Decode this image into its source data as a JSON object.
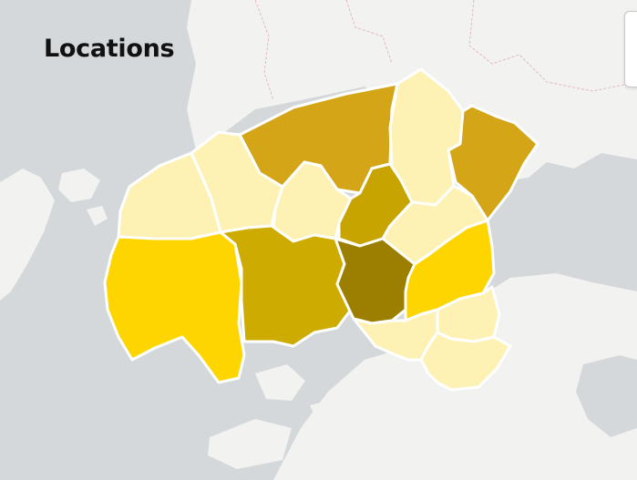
{
  "map": {
    "title": "Locations",
    "colors": {
      "water": "#d5d8db",
      "land": "#f2f2f0",
      "region_border": "#ffffff",
      "scale": [
        "#fdf2b4",
        "#fee99a",
        "#ffd500",
        "#cdab00",
        "#d4a617",
        "#c8a400",
        "#9c7e00"
      ]
    },
    "regions": [
      {
        "id": "north-central",
        "shade": "#d4a617"
      },
      {
        "id": "northeast-strip",
        "shade": "#fdf2b4"
      },
      {
        "id": "east",
        "shade": "#d4a617"
      },
      {
        "id": "northwest",
        "shade": "#fdf2b4"
      },
      {
        "id": "west-upper",
        "shade": "#fdf2b4"
      },
      {
        "id": "center-north",
        "shade": "#fdf2b4"
      },
      {
        "id": "center-upper",
        "shade": "#c8a400"
      },
      {
        "id": "center-right",
        "shade": "#fdf2b4"
      },
      {
        "id": "southwest",
        "shade": "#ffd500"
      },
      {
        "id": "south-central",
        "shade": "#cdab00"
      },
      {
        "id": "center",
        "shade": "#9c7e00"
      },
      {
        "id": "southeast",
        "shade": "#ffd500"
      },
      {
        "id": "south-east-lower",
        "shade": "#fdf2b4"
      },
      {
        "id": "south-lower",
        "shade": "#fdf2b4"
      },
      {
        "id": "south-far",
        "shade": "#fdf2b4"
      }
    ]
  }
}
